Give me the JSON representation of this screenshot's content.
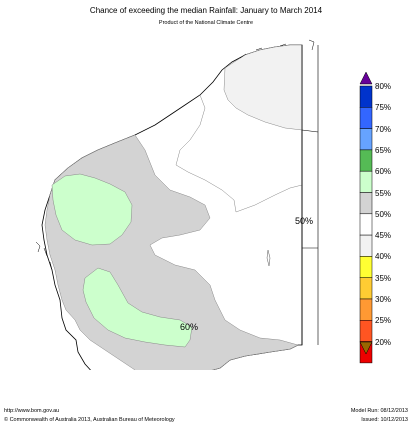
{
  "header": {
    "title": "Chance of exceeding the median Rainfall: January to March 2014",
    "subtitle": "Product of the National Climate Centre"
  },
  "map": {
    "region_labels": [
      "50%",
      "60%"
    ],
    "colors": {
      "land_below_55": "#f2f2f2",
      "land_50": "#ffffff",
      "land_55_60": "#d3d3d3",
      "land_60_65": "#ccffcc",
      "outline": "#000000",
      "boundary": "#888888"
    }
  },
  "legend": {
    "labels": [
      "80%",
      "75%",
      "70%",
      "65%",
      "60%",
      "55%",
      "50%",
      "45%",
      "40%",
      "35%",
      "30%",
      "25%",
      "20%"
    ],
    "colors": [
      "#0033cc",
      "#3366ff",
      "#66a3ff",
      "#55bb55",
      "#ccffcc",
      "#d3d3d3",
      "#ffffff",
      "#f2f2f2",
      "#ffff33",
      "#ffcc33",
      "#ff9933",
      "#ff5522",
      "#ee0000"
    ],
    "top_arrow_color": "#660099",
    "bottom_arrow_color": "#996600"
  },
  "footer": {
    "website": "http://www.bom.gov.au",
    "copyright": "©  Commonwealth of Australia 2013, Australian Bureau of Meteorology",
    "model_run": "Model Run: 08/12/2013",
    "issued": "Issued: 10/12/2013"
  }
}
